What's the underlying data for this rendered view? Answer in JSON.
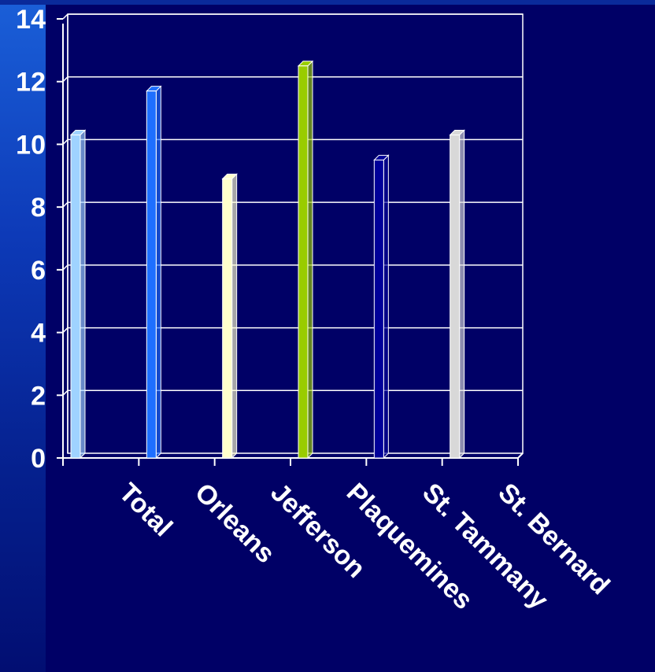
{
  "chart_data": {
    "type": "bar",
    "categories": [
      "Total",
      "Orleans",
      "Jefferson",
      "Plaquemines",
      "St. Tammany",
      "St. Bernard"
    ],
    "values": [
      10.3,
      11.7,
      8.9,
      12.5,
      9.5,
      10.3
    ],
    "colors": [
      "#9fd3ff",
      "#1e6fff",
      "#ffffcc",
      "#99cc00",
      "#000099",
      "#d8d8d8"
    ],
    "ylim": [
      0,
      14
    ],
    "yticks": [
      "0",
      "2",
      "4",
      "6",
      "8",
      "10",
      "12",
      "14"
    ],
    "grid": true,
    "xlabel": "",
    "ylabel": "",
    "title": ""
  }
}
